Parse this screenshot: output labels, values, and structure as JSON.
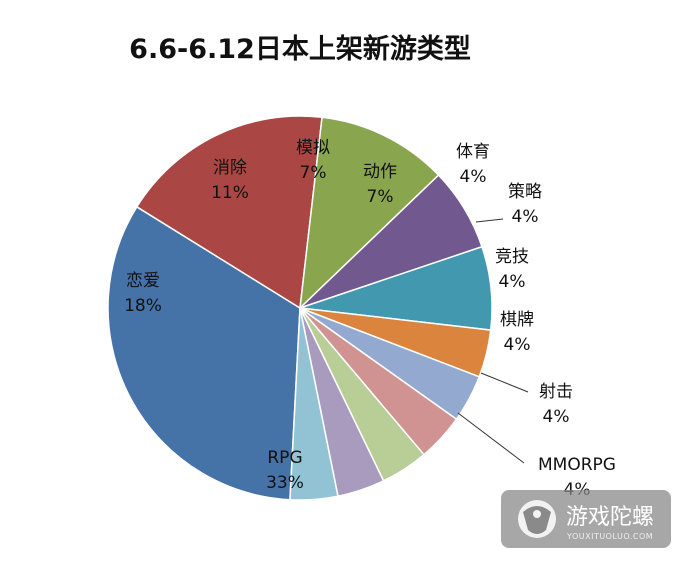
{
  "chart_data": {
    "type": "pie",
    "title": "6.6-6.12日本上架新游类型",
    "slices": [
      {
        "label": "RPG",
        "value": 33,
        "display": "33%",
        "color": "#4572A7"
      },
      {
        "label": "恋爱",
        "value": 18,
        "display": "18%",
        "color": "#AA4643"
      },
      {
        "label": "消除",
        "value": 11,
        "display": "11%",
        "color": "#89A54E"
      },
      {
        "label": "模拟",
        "value": 7,
        "display": "7%",
        "color": "#71588F"
      },
      {
        "label": "动作",
        "value": 7,
        "display": "7%",
        "color": "#4198AF"
      },
      {
        "label": "体育",
        "value": 4,
        "display": "4%",
        "color": "#DB843D"
      },
      {
        "label": "策略",
        "value": 4,
        "display": "4%",
        "color": "#93A9CF"
      },
      {
        "label": "竞技",
        "value": 4,
        "display": "4%",
        "color": "#D19392"
      },
      {
        "label": "棋牌",
        "value": 4,
        "display": "4%",
        "color": "#B9CD96"
      },
      {
        "label": "射击",
        "value": 4,
        "display": "4%",
        "color": "#A99BBD"
      },
      {
        "label": "MMORPG",
        "value": 4,
        "display": "4%",
        "color": "#92C3D4"
      }
    ]
  },
  "watermark": {
    "name": "游戏陀螺",
    "sub": "YOUXITUOLUO.COM"
  }
}
